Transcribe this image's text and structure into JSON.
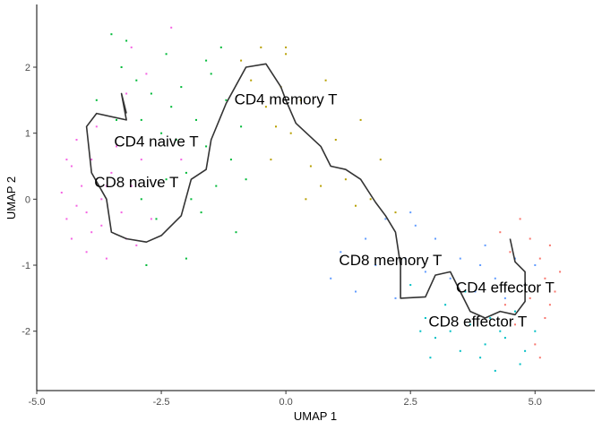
{
  "chart_data": {
    "type": "scatter",
    "xlabel": "UMAP 1",
    "ylabel": "UMAP 2",
    "xlim": [
      -5.0,
      6.2
    ],
    "ylim": [
      -2.9,
      2.95
    ],
    "xticks": [
      {
        "value": -5.0,
        "label": "-5.0"
      },
      {
        "value": -2.5,
        "label": "-2.5"
      },
      {
        "value": 0.0,
        "label": "0.0"
      },
      {
        "value": 2.5,
        "label": "2.5"
      },
      {
        "value": 5.0,
        "label": "5.0"
      }
    ],
    "yticks": [
      {
        "value": -2,
        "label": "-2"
      },
      {
        "value": -1,
        "label": "-1"
      },
      {
        "value": 0,
        "label": "0"
      },
      {
        "value": 1,
        "label": "1"
      },
      {
        "value": 2,
        "label": "2"
      }
    ],
    "grid": false,
    "legend": "none",
    "series": [
      {
        "color": "#F564E3",
        "points": [
          [
            -4.5,
            0.1
          ],
          [
            -4.4,
            -0.3
          ],
          [
            -4.3,
            0.5
          ],
          [
            -4.3,
            -0.6
          ],
          [
            -4.2,
            0.9
          ],
          [
            -4.1,
            0.2
          ],
          [
            -4.0,
            -0.2
          ],
          [
            -4.0,
            -0.8
          ],
          [
            -3.9,
            0.6
          ],
          [
            -3.8,
            1.1
          ],
          [
            -3.7,
            0.0
          ],
          [
            -3.7,
            -0.4
          ],
          [
            -3.6,
            -0.9
          ],
          [
            -3.5,
            0.4
          ],
          [
            -3.4,
            0.8
          ],
          [
            -3.3,
            -0.2
          ],
          [
            -3.2,
            -0.6
          ],
          [
            -3.1,
            0.2
          ],
          [
            -3.0,
            -0.7
          ],
          [
            -2.9,
            0.6
          ],
          [
            -3.2,
            1.6
          ],
          [
            -3.1,
            2.3
          ],
          [
            -2.8,
            1.9
          ],
          [
            -2.3,
            2.6
          ],
          [
            -2.1,
            0.6
          ],
          [
            -4.2,
            -0.1
          ],
          [
            -4.4,
            0.6
          ],
          [
            -3.9,
            -0.5
          ],
          [
            -3.6,
            0.2
          ],
          [
            -2.7,
            -0.3
          ]
        ]
      },
      {
        "color": "#00BA38",
        "points": [
          [
            -3.5,
            2.5
          ],
          [
            -3.2,
            2.4
          ],
          [
            -3.0,
            1.8
          ],
          [
            -2.9,
            1.2
          ],
          [
            -2.7,
            1.6
          ],
          [
            -2.5,
            1.0
          ],
          [
            -2.4,
            2.2
          ],
          [
            -2.3,
            1.4
          ],
          [
            -2.2,
            0.9
          ],
          [
            -2.1,
            1.7
          ],
          [
            -2.0,
            0.4
          ],
          [
            -1.9,
            0.0
          ],
          [
            -1.8,
            1.2
          ],
          [
            -1.6,
            0.8
          ],
          [
            -1.5,
            1.9
          ],
          [
            -1.4,
            0.2
          ],
          [
            -1.3,
            2.3
          ],
          [
            -1.2,
            1.5
          ],
          [
            -1.1,
            0.6
          ],
          [
            -1.0,
            -0.5
          ],
          [
            -3.8,
            1.5
          ],
          [
            -3.3,
            2.0
          ],
          [
            -2.8,
            -1.0
          ],
          [
            -2.6,
            -0.3
          ],
          [
            -2.0,
            -0.9
          ],
          [
            -1.7,
            -0.2
          ],
          [
            -0.8,
            0.3
          ],
          [
            -2.4,
            0.3
          ],
          [
            -3.4,
            1.2
          ],
          [
            -2.9,
            0.0
          ],
          [
            -0.9,
            1.1
          ],
          [
            -1.6,
            2.1
          ]
        ]
      },
      {
        "color": "#B79F00",
        "points": [
          [
            -0.9,
            2.1
          ],
          [
            -0.7,
            1.8
          ],
          [
            -0.5,
            2.3
          ],
          [
            -0.4,
            1.4
          ],
          [
            -0.3,
            0.6
          ],
          [
            -0.1,
            1.7
          ],
          [
            0.0,
            2.2
          ],
          [
            0.1,
            1.0
          ],
          [
            0.3,
            1.5
          ],
          [
            0.5,
            0.5
          ],
          [
            0.8,
            1.8
          ],
          [
            1.0,
            0.9
          ],
          [
            1.2,
            0.3
          ],
          [
            1.5,
            1.2
          ],
          [
            1.7,
            0.0
          ],
          [
            1.9,
            0.6
          ],
          [
            2.2,
            -0.2
          ],
          [
            0.0,
            2.3
          ],
          [
            -0.2,
            1.1
          ],
          [
            0.7,
            0.2
          ],
          [
            1.4,
            -0.1
          ],
          [
            0.4,
            0.0
          ]
        ]
      },
      {
        "color": "#00BFC4",
        "points": [
          [
            2.5,
            -1.3
          ],
          [
            2.8,
            -1.8
          ],
          [
            3.0,
            -2.1
          ],
          [
            3.2,
            -1.6
          ],
          [
            3.5,
            -2.3
          ],
          [
            3.7,
            -1.9
          ],
          [
            3.9,
            -2.4
          ],
          [
            4.0,
            -2.2
          ],
          [
            4.2,
            -2.6
          ],
          [
            4.4,
            -2.1
          ],
          [
            4.6,
            -1.7
          ],
          [
            4.8,
            -2.3
          ],
          [
            3.3,
            -2.0
          ],
          [
            2.9,
            -2.4
          ],
          [
            3.6,
            -1.4
          ],
          [
            4.1,
            -1.8
          ],
          [
            4.3,
            -2.0
          ],
          [
            4.7,
            -2.5
          ],
          [
            5.0,
            -2.0
          ],
          [
            2.7,
            -2.0
          ]
        ]
      },
      {
        "color": "#619CFF",
        "points": [
          [
            0.9,
            -1.2
          ],
          [
            1.1,
            -0.8
          ],
          [
            1.4,
            -1.4
          ],
          [
            1.6,
            -0.6
          ],
          [
            1.8,
            -1.0
          ],
          [
            2.0,
            -0.3
          ],
          [
            2.2,
            -1.5
          ],
          [
            2.4,
            -0.9
          ],
          [
            2.6,
            -0.4
          ],
          [
            2.8,
            -1.1
          ],
          [
            3.0,
            -0.6
          ],
          [
            3.3,
            -1.2
          ],
          [
            3.5,
            -0.9
          ],
          [
            3.8,
            -1.4
          ],
          [
            4.0,
            -0.7
          ],
          [
            4.2,
            -1.2
          ],
          [
            4.4,
            -1.5
          ],
          [
            4.6,
            -0.9
          ],
          [
            4.8,
            -1.3
          ],
          [
            5.0,
            -1.0
          ],
          [
            3.9,
            -1.0
          ],
          [
            2.5,
            -0.2
          ]
        ]
      },
      {
        "color": "#F8766D",
        "points": [
          [
            4.3,
            -0.5
          ],
          [
            4.5,
            -0.8
          ],
          [
            4.7,
            -0.3
          ],
          [
            4.9,
            -0.6
          ],
          [
            5.1,
            -0.9
          ],
          [
            5.2,
            -1.2
          ],
          [
            5.3,
            -0.7
          ],
          [
            5.4,
            -1.4
          ],
          [
            5.2,
            -1.8
          ],
          [
            4.9,
            -1.5
          ],
          [
            4.6,
            -1.9
          ],
          [
            5.0,
            -2.2
          ],
          [
            5.3,
            -1.6
          ],
          [
            4.4,
            -1.6
          ],
          [
            5.5,
            -1.1
          ],
          [
            5.1,
            -2.4
          ]
        ]
      }
    ],
    "trajectory": [
      [
        -3.2,
        1.3
      ],
      [
        -3.3,
        1.6
      ],
      [
        -3.2,
        1.2
      ],
      [
        -3.8,
        1.3
      ],
      [
        -4.0,
        1.1
      ],
      [
        -3.9,
        0.4
      ],
      [
        -3.6,
        0.0
      ],
      [
        -3.5,
        -0.5
      ],
      [
        -3.2,
        -0.6
      ],
      [
        -2.8,
        -0.65
      ],
      [
        -2.5,
        -0.55
      ],
      [
        -2.1,
        -0.25
      ],
      [
        -1.9,
        0.3
      ],
      [
        -1.6,
        0.45
      ],
      [
        -1.5,
        0.9
      ],
      [
        -1.2,
        1.45
      ],
      [
        -0.8,
        2.0
      ],
      [
        -0.4,
        2.05
      ],
      [
        -0.1,
        1.7
      ],
      [
        0.0,
        1.5
      ],
      [
        0.2,
        1.15
      ],
      [
        0.7,
        0.8
      ],
      [
        0.9,
        0.5
      ],
      [
        1.2,
        0.45
      ],
      [
        1.5,
        0.3
      ],
      [
        1.8,
        -0.05
      ],
      [
        2.0,
        -0.25
      ],
      [
        2.2,
        -0.5
      ],
      [
        2.3,
        -1.0
      ],
      [
        2.3,
        -1.5
      ],
      [
        2.8,
        -1.48
      ],
      [
        3.0,
        -1.15
      ],
      [
        3.3,
        -1.1
      ],
      [
        3.5,
        -1.4
      ],
      [
        3.7,
        -1.7
      ],
      [
        4.0,
        -1.8
      ],
      [
        4.3,
        -1.7
      ],
      [
        4.6,
        -1.75
      ],
      [
        4.8,
        -1.55
      ],
      [
        4.8,
        -1.1
      ],
      [
        4.6,
        -0.95
      ],
      [
        4.5,
        -0.6
      ]
    ],
    "annotations": [
      {
        "text": "CD4 memory T",
        "x": 0.0,
        "y": 1.52
      },
      {
        "text": "CD4 naive T",
        "x": -2.6,
        "y": 0.88
      },
      {
        "text": "CD8 naive T",
        "x": -3.0,
        "y": 0.26
      },
      {
        "text": "CD8 memory T",
        "x": 2.1,
        "y": -0.92
      },
      {
        "text": "CD4 effector T",
        "x": 4.4,
        "y": -1.33
      },
      {
        "text": "CD8 effector T",
        "x": 3.85,
        "y": -1.85
      }
    ]
  }
}
